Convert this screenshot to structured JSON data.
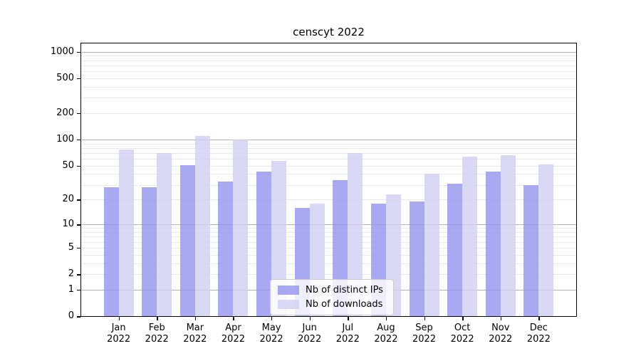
{
  "chart_data": {
    "type": "bar",
    "title": "censcyt 2022",
    "categories": [
      "Jan 2022",
      "Feb 2022",
      "Mar 2022",
      "Apr 2022",
      "May 2022",
      "Jun 2022",
      "Jul 2022",
      "Aug 2022",
      "Sep 2022",
      "Oct 2022",
      "Nov 2022",
      "Dec 2022"
    ],
    "series": [
      {
        "name": "Nb of distinct IPs",
        "color": "#9494ef",
        "alpha": 0.8,
        "values": [
          28,
          28,
          51,
          33,
          43,
          16,
          34,
          18,
          19,
          31,
          43,
          30
        ]
      },
      {
        "name": "Nb of downloads",
        "color": "#cfcff4",
        "alpha": 0.8,
        "values": [
          77,
          70,
          110,
          100,
          57,
          18,
          70,
          23,
          40,
          64,
          66,
          52
        ]
      }
    ],
    "xlabel": "",
    "ylabel": "",
    "yscale": "log1p",
    "ylim": [
      0,
      1270
    ],
    "y_ticks": [
      0,
      1,
      2,
      5,
      10,
      20,
      50,
      100,
      200,
      500,
      1000
    ],
    "grid_major": [
      1,
      10,
      100,
      1000
    ],
    "grid_minor": [
      2,
      3,
      4,
      6,
      7,
      8,
      9,
      5,
      20,
      30,
      40,
      50,
      60,
      70,
      80,
      90,
      200,
      300,
      400,
      500,
      600,
      700,
      800,
      900
    ],
    "grid": "on",
    "legend_position": "lower center"
  },
  "legend": {
    "items": [
      {
        "label": "Nb of distinct IPs",
        "color": "#9494ef",
        "alpha": 0.8
      },
      {
        "label": "Nb of downloads",
        "color": "#cfcff4",
        "alpha": 0.8
      }
    ]
  },
  "colors": {
    "grid_major": "#b2b2b2",
    "grid_minor": "#e9e9e9",
    "spine": "#000000",
    "background": "#ffffff",
    "text": "#000000"
  }
}
